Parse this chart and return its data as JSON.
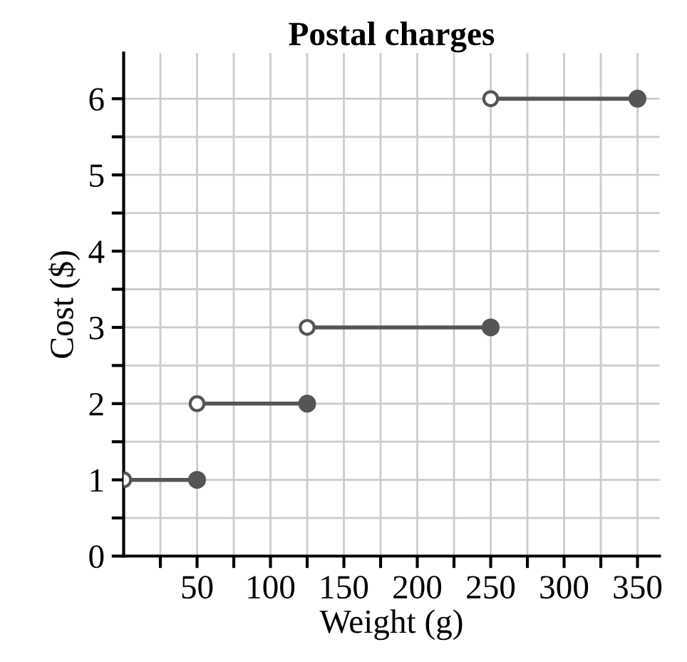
{
  "chart_data": {
    "type": "line",
    "title": "Postal charges",
    "xlabel": "Weight (g)",
    "ylabel": "Cost ($)",
    "series": [
      {
        "color": "#555555",
        "x": [
          0,
          50
        ],
        "values": [
          1,
          1
        ]
      },
      {
        "color": "#555555",
        "x": [
          50,
          125
        ],
        "values": [
          2,
          2
        ]
      },
      {
        "color": "#555555",
        "x": [
          125,
          250
        ],
        "values": [
          3,
          3
        ]
      },
      {
        "color": "#555555",
        "x": [
          250,
          350
        ],
        "values": [
          6,
          6
        ]
      }
    ],
    "marker": "circle",
    "line_style": "solid",
    "grid": true,
    "legend": false,
    "xlim": [
      0,
      365
    ],
    "ylim": [
      0,
      6.6
    ],
    "xticks": [
      {
        "value": 25,
        "label": null
      },
      50,
      {
        "value": 75,
        "label": null
      },
      100,
      {
        "value": 125,
        "label": null
      },
      150,
      {
        "value": 175,
        "label": null
      },
      200,
      {
        "value": 225,
        "label": null
      },
      250,
      {
        "value": 275,
        "label": null
      },
      300,
      {
        "value": 325,
        "label": null
      },
      350
    ],
    "yticks": [
      0,
      {
        "value": 0.5,
        "label": null
      },
      1,
      {
        "value": 1.5,
        "label": null
      },
      2,
      {
        "value": 2.5,
        "label": null
      },
      3,
      {
        "value": 3.5,
        "label": null
      },
      4,
      {
        "value": 4.5,
        "label": null
      },
      5,
      {
        "value": 5.5,
        "label": null
      },
      6
    ]
  }
}
